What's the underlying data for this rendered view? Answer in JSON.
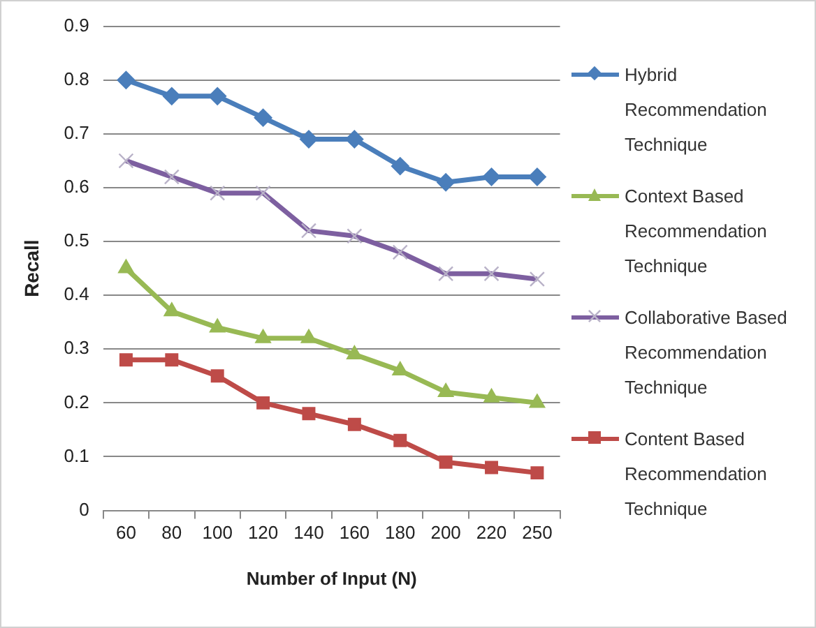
{
  "chart_data": {
    "type": "line",
    "xlabel": "Number of Input (N)",
    "ylabel": "Recall",
    "categories": [
      "60",
      "80",
      "100",
      "120",
      "140",
      "160",
      "180",
      "200",
      "220",
      "250"
    ],
    "ylim": [
      0,
      0.9
    ],
    "yticks": [
      0,
      0.1,
      0.2,
      0.3,
      0.4,
      0.5,
      0.6,
      0.7,
      0.8,
      0.9
    ],
    "grid": "y",
    "legend": "right",
    "series": [
      {
        "name": "Hybrid Recommendation Technique",
        "color": "#4a7ebb",
        "marker": "diamond",
        "values": [
          0.8,
          0.77,
          0.77,
          0.73,
          0.69,
          0.69,
          0.64,
          0.61,
          0.62,
          0.62
        ]
      },
      {
        "name": "Context Based Recommendation Technique",
        "color": "#98b954",
        "marker": "triangle",
        "values": [
          0.45,
          0.37,
          0.34,
          0.32,
          0.32,
          0.29,
          0.26,
          0.22,
          0.21,
          0.2
        ]
      },
      {
        "name": "Collaborative Based Recommendation Technique",
        "color": "#7d5fa0",
        "marker": "cross",
        "values": [
          0.65,
          0.62,
          0.59,
          0.59,
          0.52,
          0.51,
          0.48,
          0.44,
          0.44,
          0.43
        ]
      },
      {
        "name": "Content Based Recommendation Technique",
        "color": "#be4b48",
        "marker": "square",
        "values": [
          0.28,
          0.28,
          0.25,
          0.2,
          0.18,
          0.16,
          0.13,
          0.09,
          0.08,
          0.07
        ]
      }
    ]
  }
}
